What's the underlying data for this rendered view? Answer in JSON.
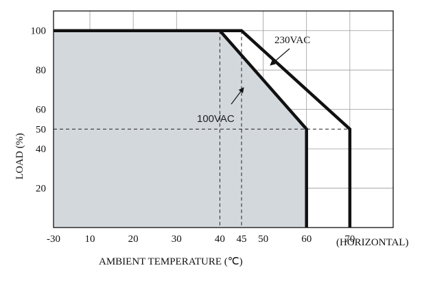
{
  "chart_data": {
    "type": "line",
    "xlabel": "AMBIENT TEMPERATURE (℃)",
    "xlabel_extra": "(HORIZONTAL)",
    "ylabel": "LOAD (%)",
    "xlim": [
      -30,
      80
    ],
    "ylim": [
      0,
      110
    ],
    "x_ticks": [
      -30,
      10,
      20,
      30,
      40,
      45,
      50,
      60,
      70
    ],
    "y_ticks": [
      20,
      40,
      50,
      60,
      80,
      100
    ],
    "grid": true,
    "series": [
      {
        "name": "100VAC",
        "points": [
          [
            -30,
            100
          ],
          [
            40,
            100
          ],
          [
            60,
            50
          ],
          [
            60,
            0
          ]
        ],
        "filled": true,
        "fill_color": "#d3d8dd"
      },
      {
        "name": "230VAC",
        "points": [
          [
            -30,
            100
          ],
          [
            45,
            100
          ],
          [
            70,
            50
          ],
          [
            70,
            0
          ]
        ],
        "filled": false
      }
    ],
    "reference_lines": [
      {
        "orientation": "vertical",
        "x": 40
      },
      {
        "orientation": "vertical",
        "x": 45
      },
      {
        "orientation": "horizontal",
        "y": 50
      }
    ],
    "annotations": [
      {
        "text": "230VAC",
        "series": "230VAC"
      },
      {
        "text": "100VAC",
        "series": "100VAC"
      }
    ]
  }
}
